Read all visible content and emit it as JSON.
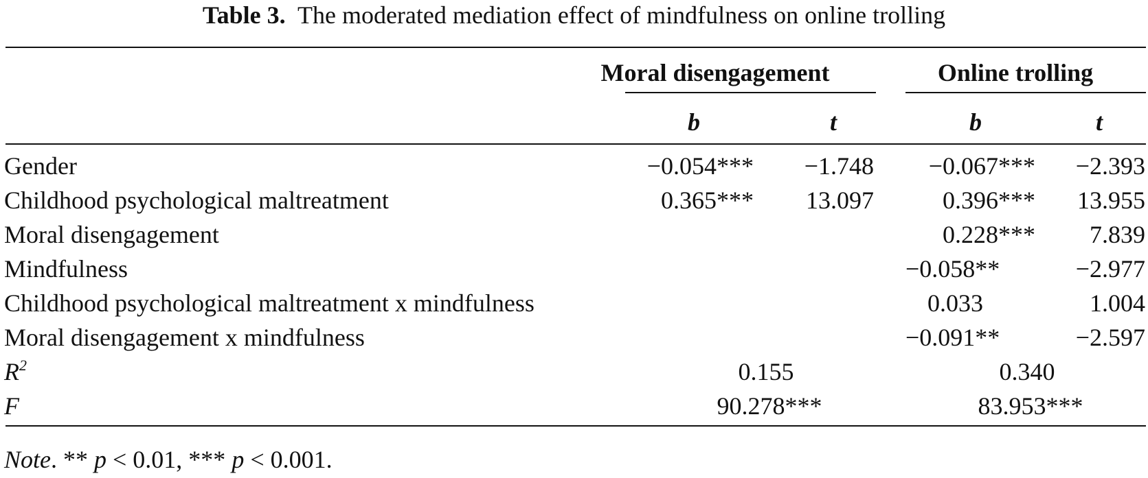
{
  "caption": {
    "label": "Table 3.",
    "text": "The moderated mediation effect of mindfulness on online trolling"
  },
  "groups": [
    "Moral disengagement",
    "Online trolling"
  ],
  "col_heads": [
    "b",
    "t",
    "b",
    "t"
  ],
  "rows": [
    {
      "label": "Gender",
      "md_b": "−0.054***",
      "md_t": "−1.748",
      "ot_b": "−0.067***",
      "ot_t": "−2.393"
    },
    {
      "label": "Childhood psychological maltreatment",
      "md_b": "0.365***",
      "md_t": "13.097",
      "ot_b": "0.396***",
      "ot_t": "13.955"
    },
    {
      "label": "Moral disengagement",
      "md_b": "",
      "md_t": "",
      "ot_b": "0.228***",
      "ot_t": "7.839"
    },
    {
      "label": "Mindfulness",
      "md_b": "",
      "md_t": "",
      "ot_b": "−0.058**",
      "ot_t": "−2.977"
    },
    {
      "label": "Childhood psychological maltreatment x mindfulness",
      "md_b": "",
      "md_t": "",
      "ot_b": "0.033",
      "ot_t": "1.004"
    },
    {
      "label": "Moral disengagement x mindfulness",
      "md_b": "",
      "md_t": "",
      "ot_b": "−0.091**",
      "ot_t": "−2.597"
    }
  ],
  "fit": {
    "r2": {
      "label": "R",
      "sup": "2",
      "md": "0.155",
      "ot": "0.340"
    },
    "f": {
      "label": "F",
      "md": "90.278***",
      "ot": "83.953***"
    }
  },
  "note": {
    "label": "Note",
    "text": ". ** ",
    "p1": "p",
    "t1": " < 0.01, *** ",
    "p2": "p",
    "t2": " < 0.001."
  }
}
